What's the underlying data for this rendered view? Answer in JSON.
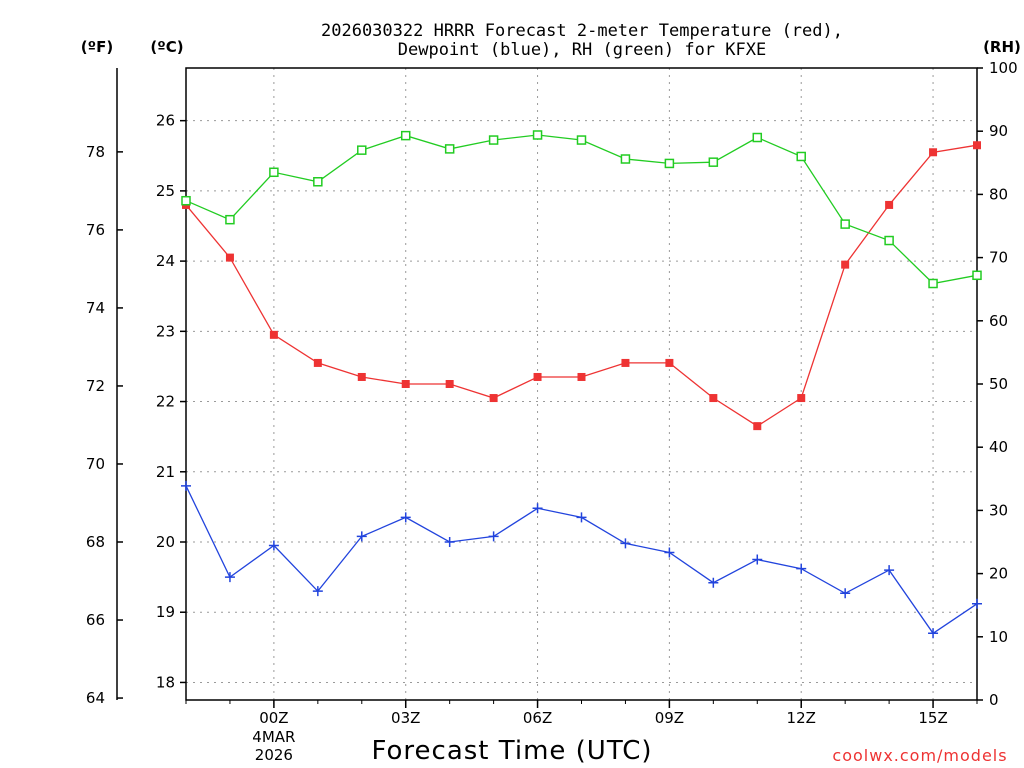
{
  "chart_data": {
    "type": "line",
    "title_line1": "2026030322 HRRR Forecast 2-meter Temperature (red),",
    "title_line2": "Dewpoint (blue), RH (green) for KFXE",
    "xlabel": "Forecast Time (UTC)",
    "credit": "coolwx.com/models",
    "unit_left_f": "(ºF)",
    "unit_left_c": "(ºC)",
    "unit_right": "(RH)",
    "x_hours": [
      22,
      23,
      24,
      25,
      26,
      27,
      28,
      29,
      30,
      31,
      32,
      33,
      34,
      35,
      36,
      37,
      38,
      39,
      40
    ],
    "x_range": [
      22,
      40
    ],
    "x_ticks": [
      {
        "hour": 24,
        "label": "00Z",
        "date_line1": "4MAR",
        "date_line2": "2026"
      },
      {
        "hour": 27,
        "label": "03Z"
      },
      {
        "hour": 30,
        "label": "06Z"
      },
      {
        "hour": 33,
        "label": "09Z"
      },
      {
        "hour": 36,
        "label": "12Z"
      },
      {
        "hour": 39,
        "label": "15Z"
      }
    ],
    "celsius_range": [
      17.75,
      26.75
    ],
    "celsius_ticks": [
      "18",
      "19",
      "20",
      "21",
      "22",
      "23",
      "24",
      "25",
      "26"
    ],
    "fahrenheit_ticks": [
      "64",
      "66",
      "68",
      "70",
      "72",
      "74",
      "76",
      "78"
    ],
    "rh_range": [
      0,
      100
    ],
    "rh_ticks": [
      "0",
      "10",
      "20",
      "30",
      "40",
      "50",
      "60",
      "70",
      "80",
      "90",
      "100"
    ],
    "series": [
      {
        "name": "Temperature",
        "unit": "C",
        "color": "#ee3333",
        "marker": "filled-square",
        "values": [
          24.8,
          24.05,
          22.95,
          22.55,
          22.35,
          22.25,
          22.25,
          22.05,
          22.35,
          22.35,
          22.55,
          22.55,
          22.05,
          21.65,
          22.05,
          23.95,
          24.8,
          25.55,
          25.65
        ]
      },
      {
        "name": "Dewpoint",
        "unit": "C",
        "color": "#2244dd",
        "marker": "plus",
        "values": [
          20.8,
          19.5,
          19.95,
          19.3,
          20.08,
          20.35,
          20.0,
          20.08,
          20.48,
          20.35,
          19.98,
          19.85,
          19.42,
          19.75,
          19.62,
          19.27,
          19.6,
          18.7,
          19.12
        ]
      },
      {
        "name": "RH",
        "unit": "%",
        "color": "#22cc22",
        "marker": "open-square",
        "values": [
          79,
          76,
          83.5,
          82,
          87,
          89.3,
          87.2,
          88.6,
          89.4,
          88.6,
          85.6,
          84.9,
          85.1,
          89,
          86,
          75.3,
          72.7,
          65.9,
          67.2
        ]
      }
    ]
  }
}
